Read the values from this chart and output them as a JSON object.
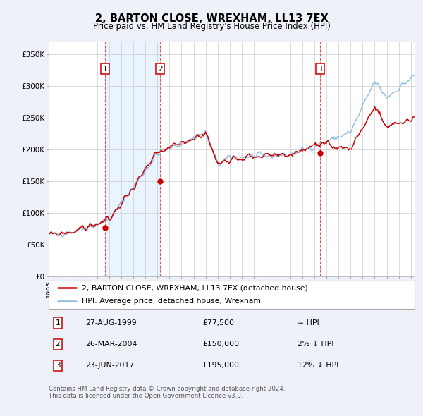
{
  "title": "2, BARTON CLOSE, WREXHAM, LL13 7EX",
  "subtitle": "Price paid vs. HM Land Registry's House Price Index (HPI)",
  "property_color": "#cc0000",
  "hpi_color": "#88bbdd",
  "hpi_fill_color": "#ddeeff",
  "background_color": "#eef2f8",
  "plot_bg_color": "#ffffff",
  "ylim": [
    0,
    370000
  ],
  "yticks": [
    0,
    50000,
    100000,
    150000,
    200000,
    250000,
    300000,
    350000
  ],
  "sales": [
    {
      "num": 1,
      "date_label": "27-AUG-1999",
      "price": 77500,
      "year": 1999.65,
      "hpi_rel": "≈ HPI"
    },
    {
      "num": 2,
      "date_label": "26-MAR-2004",
      "price": 150000,
      "year": 2004.23,
      "hpi_rel": "2% ↓ HPI"
    },
    {
      "num": 3,
      "date_label": "23-JUN-2017",
      "price": 195000,
      "year": 2017.47,
      "hpi_rel": "12% ↓ HPI"
    }
  ],
  "legend_property_label": "2, BARTON CLOSE, WREXHAM, LL13 7EX (detached house)",
  "legend_hpi_label": "HPI: Average price, detached house, Wrexham",
  "footer_line1": "Contains HM Land Registry data © Crown copyright and database right 2024.",
  "footer_line2": "This data is licensed under the Open Government Licence v3.0.",
  "xmin": 1995,
  "xmax": 2025.3
}
